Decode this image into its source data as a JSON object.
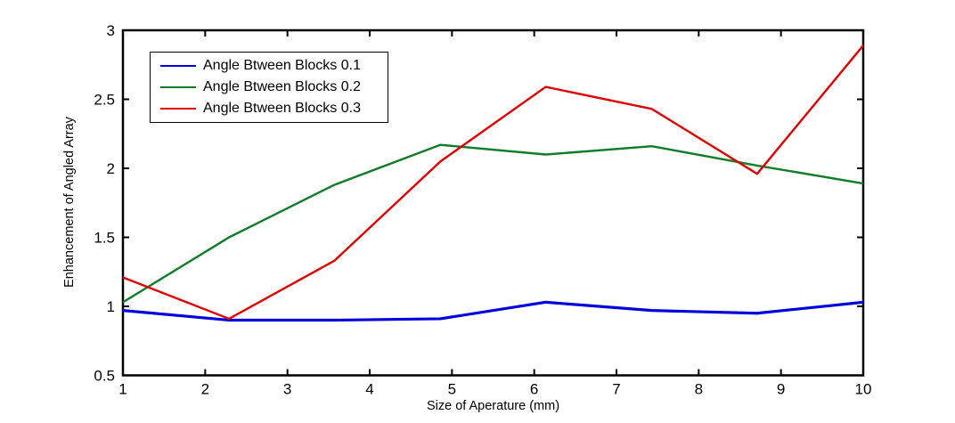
{
  "figure": {
    "background": "#ffffff",
    "axis_color": "#000000"
  },
  "chart_data": {
    "type": "line",
    "title": "",
    "xlabel": "Size of Aperature (mm)",
    "ylabel": "Enhancement of Angled Array",
    "xlim": [
      1,
      10
    ],
    "ylim": [
      0.5,
      3
    ],
    "xticks": [
      1,
      2,
      3,
      4,
      5,
      6,
      7,
      8,
      9,
      10
    ],
    "yticks": [
      0.5,
      1,
      1.5,
      2,
      2.5,
      3
    ],
    "grid": false,
    "legend_position": "upper-left",
    "x": [
      1,
      2.29,
      3.57,
      4.86,
      6.14,
      7.43,
      8.71,
      10
    ],
    "series": [
      {
        "name": "Angle Btween Blocks 0.1",
        "color": "#0000dd",
        "values": [
          0.97,
          0.9,
          0.9,
          0.91,
          1.03,
          0.97,
          0.95,
          1.03
        ]
      },
      {
        "name": "Angle Btween Blocks 0.2",
        "color": "#0e7d28",
        "values": [
          1.03,
          1.5,
          1.88,
          2.17,
          2.1,
          2.16,
          2.02,
          1.89
        ]
      },
      {
        "name": "Angle Btween Blocks 0.3",
        "color": "#e00000",
        "values": [
          1.21,
          0.91,
          1.33,
          2.05,
          2.59,
          2.43,
          1.96,
          2.89
        ]
      }
    ]
  }
}
